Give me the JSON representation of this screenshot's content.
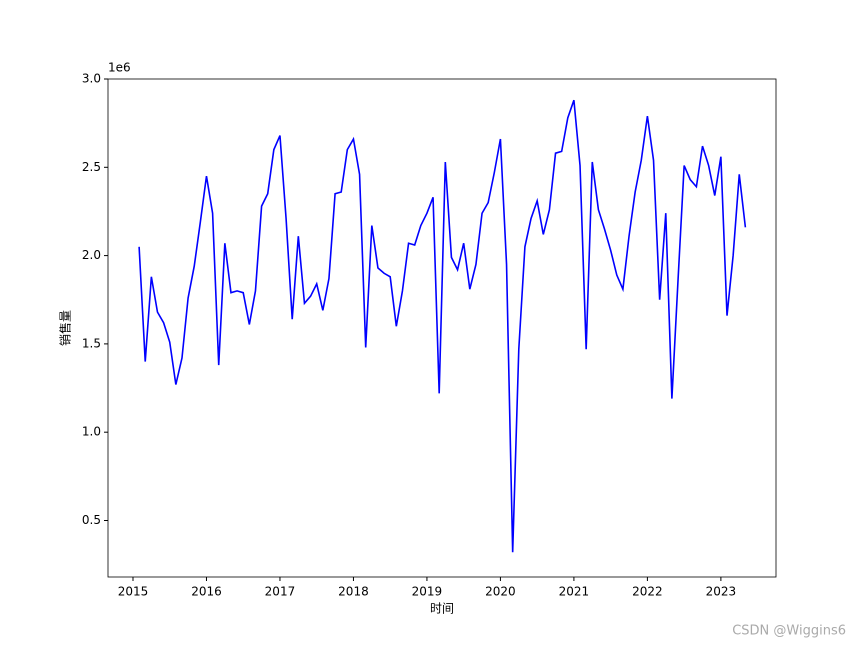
{
  "chart_data": {
    "type": "line",
    "x_label": "时间",
    "y_label": "销售量",
    "y_offset_label": "1e6",
    "watermark": "CSDN @Wiggins6",
    "color": "#0000ff",
    "x": [
      "2015-01",
      "2015-02",
      "2015-03",
      "2015-04",
      "2015-05",
      "2015-06",
      "2015-07",
      "2015-08",
      "2015-09",
      "2015-10",
      "2015-11",
      "2015-12",
      "2016-01",
      "2016-02",
      "2016-03",
      "2016-04",
      "2016-05",
      "2016-06",
      "2016-07",
      "2016-08",
      "2016-09",
      "2016-10",
      "2016-11",
      "2016-12",
      "2017-01",
      "2017-02",
      "2017-03",
      "2017-04",
      "2017-05",
      "2017-06",
      "2017-07",
      "2017-08",
      "2017-09",
      "2017-10",
      "2017-11",
      "2017-12",
      "2018-01",
      "2018-02",
      "2018-03",
      "2018-04",
      "2018-05",
      "2018-06",
      "2018-07",
      "2018-08",
      "2018-09",
      "2018-10",
      "2018-11",
      "2018-12",
      "2019-01",
      "2019-02",
      "2019-03",
      "2019-04",
      "2019-05",
      "2019-06",
      "2019-07",
      "2019-08",
      "2019-09",
      "2019-10",
      "2019-11",
      "2019-12",
      "2020-01",
      "2020-02",
      "2020-03",
      "2020-04",
      "2020-05",
      "2020-06",
      "2020-07",
      "2020-08",
      "2020-09",
      "2020-10",
      "2020-11",
      "2020-12",
      "2021-01",
      "2021-02",
      "2021-03",
      "2021-04",
      "2021-05",
      "2021-06",
      "2021-07",
      "2021-08",
      "2021-09",
      "2021-10",
      "2021-11",
      "2021-12",
      "2022-01",
      "2022-02",
      "2022-03",
      "2022-04",
      "2022-05",
      "2022-06",
      "2022-07",
      "2022-08",
      "2022-09",
      "2022-10",
      "2022-11",
      "2022-12",
      "2023-01",
      "2023-02",
      "2023-03",
      "2023-04"
    ],
    "values": [
      2.05,
      1.4,
      1.88,
      1.68,
      1.62,
      1.51,
      1.27,
      1.42,
      1.76,
      1.94,
      2.19,
      2.45,
      2.24,
      1.38,
      2.07,
      1.79,
      1.8,
      1.79,
      1.61,
      1.8,
      2.28,
      2.35,
      2.6,
      2.68,
      2.21,
      1.64,
      2.11,
      1.73,
      1.77,
      1.84,
      1.69,
      1.87,
      2.35,
      2.36,
      2.6,
      2.66,
      2.46,
      1.48,
      2.17,
      1.93,
      1.9,
      1.88,
      1.6,
      1.8,
      2.07,
      2.06,
      2.17,
      2.24,
      2.33,
      1.22,
      2.53,
      1.99,
      1.92,
      2.07,
      1.81,
      1.95,
      2.24,
      2.3,
      2.47,
      2.66,
      1.95,
      0.32,
      1.47,
      2.05,
      2.21,
      2.31,
      2.12,
      2.26,
      2.58,
      2.59,
      2.78,
      2.88,
      2.51,
      1.47,
      2.53,
      2.26,
      2.15,
      2.03,
      1.89,
      1.81,
      2.11,
      2.36,
      2.54,
      2.79,
      2.54,
      1.75,
      2.24,
      1.19,
      1.86,
      2.51,
      2.43,
      2.39,
      2.62,
      2.51,
      2.34,
      2.56,
      1.66,
      2.0,
      2.46,
      2.16
    ],
    "xlim": [
      2014.66,
      2023.75
    ],
    "xticks": [
      2015,
      2016,
      2017,
      2018,
      2019,
      2020,
      2021,
      2022,
      2023
    ],
    "ylim": [
      0.18,
      3.0
    ],
    "yticks": [
      0.5,
      {
        "value": 1,
        "label": "1.0"
      },
      1.5,
      {
        "value": 2,
        "label": "2.0"
      },
      2.5,
      {
        "value": 3,
        "label": "3.0"
      }
    ]
  }
}
